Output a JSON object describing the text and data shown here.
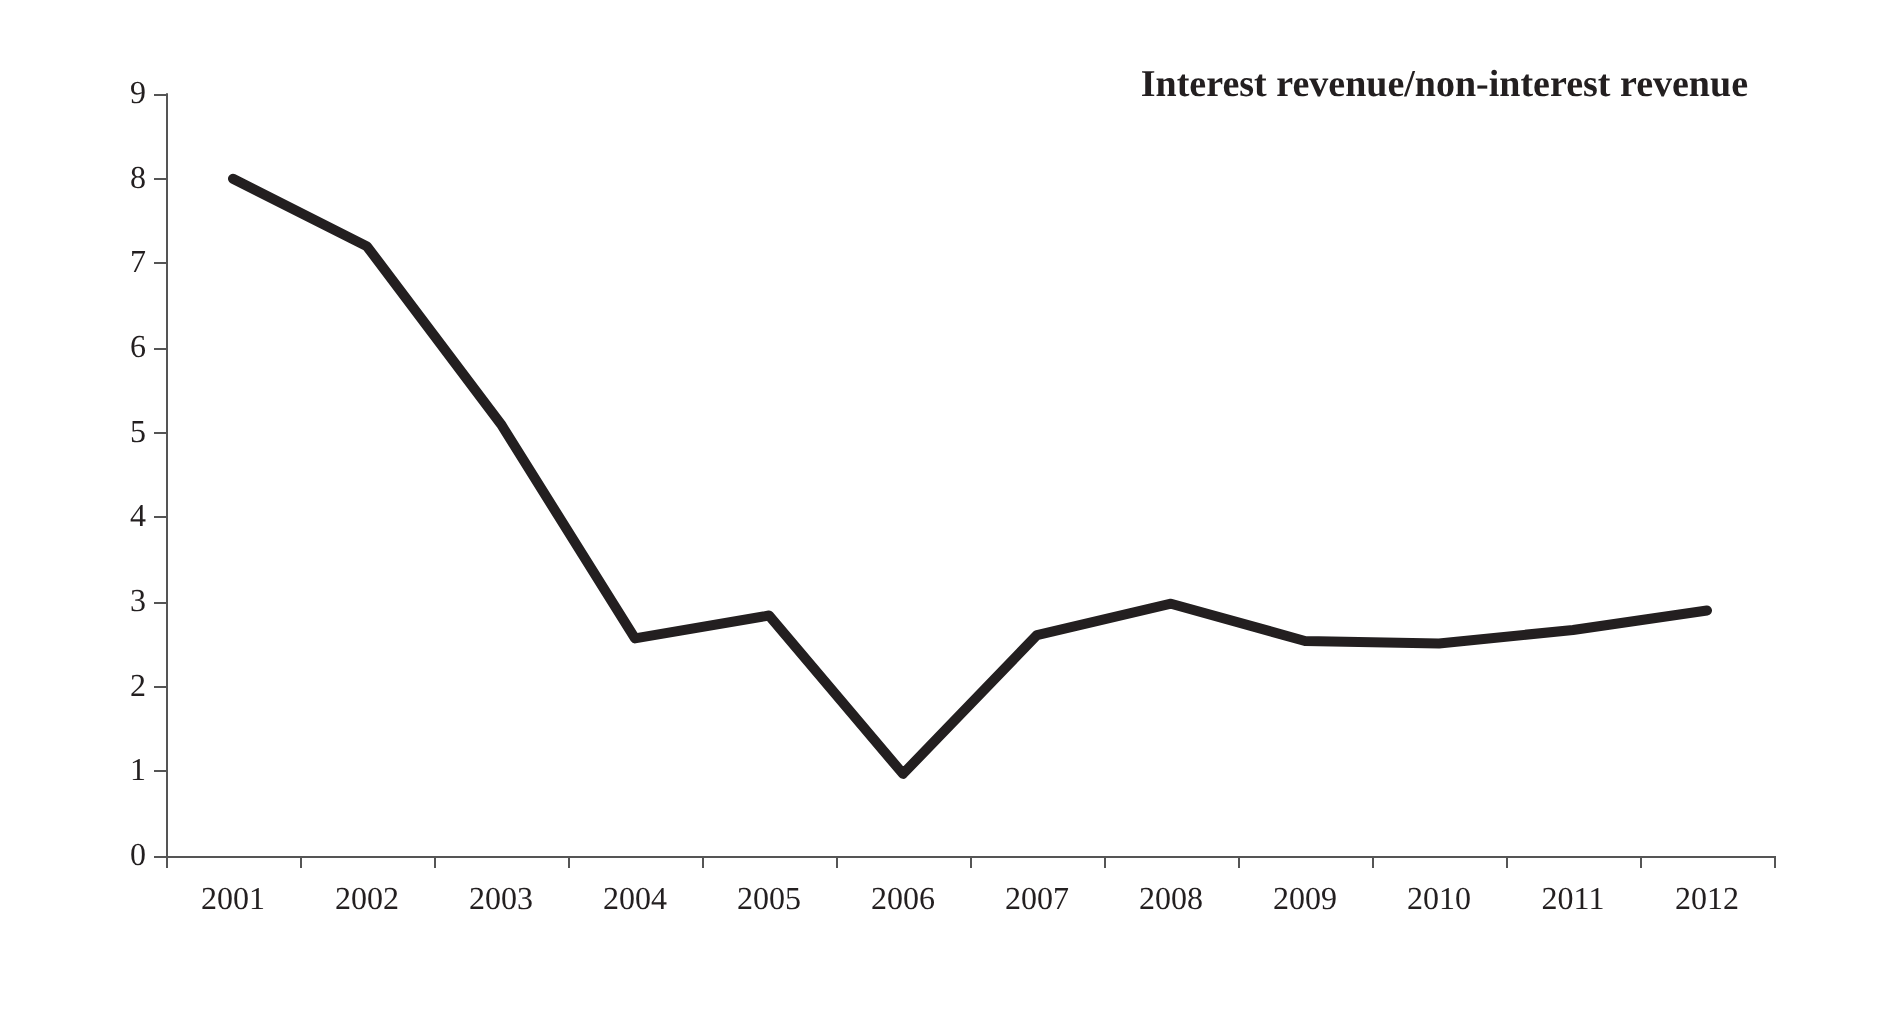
{
  "chart_data": {
    "type": "line",
    "title": "Interest revenue/non-interest revenue",
    "categories": [
      "2001",
      "2002",
      "2003",
      "2004",
      "2005",
      "2006",
      "2007",
      "2008",
      "2009",
      "2010",
      "2011",
      "2012"
    ],
    "series": [
      {
        "color": "#231f20",
        "values": [
          8.0,
          7.2,
          5.1,
          2.57,
          2.84,
          0.97,
          2.61,
          2.98,
          2.54,
          2.51,
          2.67,
          2.9
        ]
      }
    ],
    "ylim": [
      0,
      9
    ],
    "yticks": [
      0,
      1,
      2,
      3,
      4,
      5,
      6,
      7,
      8,
      9
    ],
    "grid": false,
    "marker": "none",
    "line_style": "solid"
  }
}
